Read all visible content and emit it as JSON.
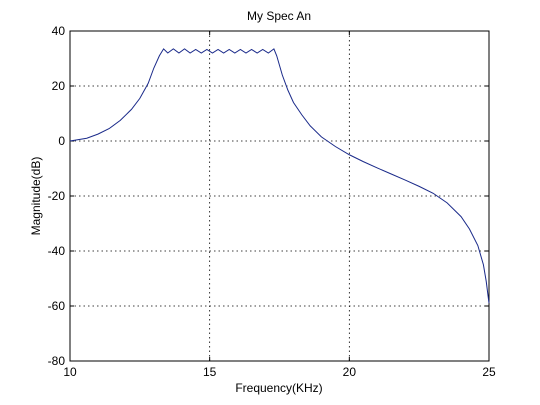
{
  "chart_data": {
    "type": "line",
    "title": "My Spec An",
    "xlabel": "Frequency(KHz)",
    "ylabel": "Magnitude(dB)",
    "xlim": [
      10,
      25
    ],
    "ylim": [
      -80,
      40
    ],
    "xticks": [
      10,
      15,
      20,
      25
    ],
    "yticks": [
      -80,
      -60,
      -40,
      -20,
      0,
      20,
      40
    ],
    "grid": true,
    "line_color": "#1a2a8a",
    "series": [
      {
        "x": [
          10.0,
          10.3,
          10.6,
          11.0,
          11.4,
          11.8,
          12.2,
          12.5,
          12.8,
          13.0,
          13.2,
          13.35,
          13.5,
          13.7,
          13.9,
          14.1,
          14.3,
          14.5,
          14.7,
          14.9,
          15.1,
          15.3,
          15.5,
          15.7,
          15.9,
          16.1,
          16.3,
          16.5,
          16.7,
          16.9,
          17.1,
          17.3,
          17.4,
          17.6,
          17.8,
          18.0,
          18.3,
          18.6,
          19.0,
          19.5,
          20.0,
          20.5,
          21.0,
          21.5,
          22.0,
          22.5,
          23.0,
          23.5,
          24.0,
          24.3,
          24.6,
          24.8,
          24.9,
          24.95,
          25.0
        ],
        "y": [
          0,
          0.5,
          1,
          2.5,
          4.5,
          7.5,
          11.5,
          15.5,
          21,
          26.5,
          31,
          33.5,
          32,
          33.5,
          32,
          33.5,
          32,
          33.3,
          32,
          33.3,
          32,
          33.3,
          32,
          33.3,
          32,
          33.3,
          32,
          33.3,
          32,
          33.3,
          32,
          33.5,
          31,
          24,
          18.5,
          14,
          9.5,
          5.5,
          1.5,
          -2,
          -5,
          -7.5,
          -9.8,
          -12,
          -14.2,
          -16.5,
          -19,
          -22.5,
          -27.5,
          -32,
          -38,
          -45,
          -51,
          -55,
          -59
        ]
      }
    ]
  }
}
